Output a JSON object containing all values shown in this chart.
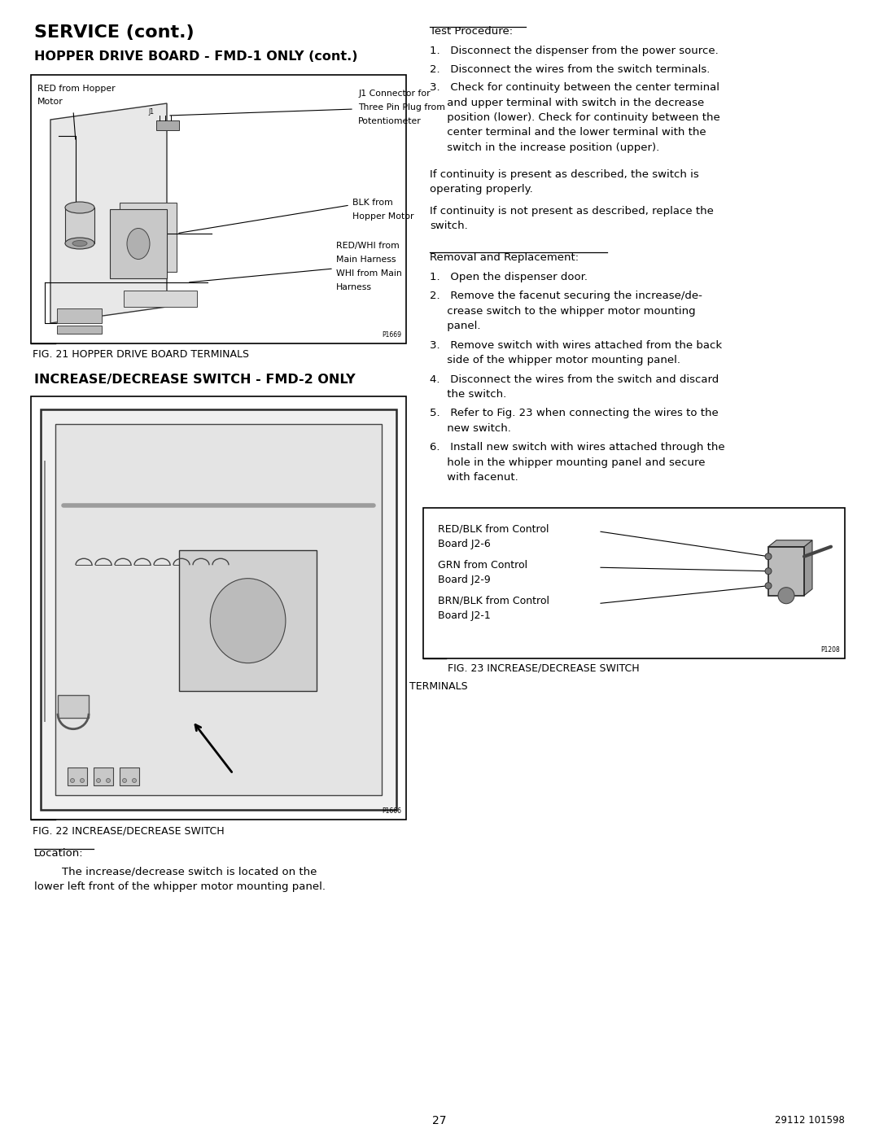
{
  "page_width": 10.8,
  "page_height": 13.97,
  "bg_color": "#ffffff",
  "lm": 0.42,
  "rm": 10.38,
  "c1r": 4.95,
  "c2l": 5.28,
  "title1": "SERVICE (cont.)",
  "title2": "HOPPER DRIVE BOARD - FMD-1 ONLY (cont.)",
  "title3": "INCREASE/DECREASE SWITCH - FMD-2 ONLY",
  "tp_heading": "Test Procedure:",
  "test_items": [
    [
      "1.   Disconnect the dispenser from the power source."
    ],
    [
      "2.   Disconnect the wires from the switch terminals."
    ],
    [
      "3.   Check for continuity between the center terminal",
      "     and upper terminal with switch in the decrease",
      "     position (lower). Check for continuity between the",
      "     center terminal and the lower terminal with the",
      "     switch in the increase position (upper)."
    ]
  ],
  "para1": [
    "If continuity is present as described, the switch is",
    "operating properly."
  ],
  "para2": [
    "If continuity is not present as described, replace the",
    "switch."
  ],
  "rem_heading": "Removal and Replacement:",
  "rem_items": [
    [
      "1.   Open the dispenser door."
    ],
    [
      "2.   Remove the facenut securing the increase/de-",
      "     crease switch to the whipper motor mounting",
      "     panel."
    ],
    [
      "3.   Remove switch with wires attached from the back",
      "     side of the whipper motor mounting panel."
    ],
    [
      "4.   Disconnect the wires from the switch and discard",
      "     the switch."
    ],
    [
      "5.   Refer to Fig. 23 when connecting the wires to the",
      "     new switch."
    ],
    [
      "6.   Install new switch with wires attached through the",
      "     hole in the whipper mounting panel and secure",
      "     with facenut."
    ]
  ],
  "box3_labels": [
    [
      "RED/BLK from Control",
      "Board J2-6"
    ],
    [
      "GRN from Control",
      "Board J2-9"
    ],
    [
      "BRN/BLK from Control",
      "Board J2-1"
    ]
  ],
  "box1_label_tl": [
    "RED from Hopper",
    "Motor"
  ],
  "box1_label_tr": [
    "J1 Connector for",
    "Three Pin Plug from",
    "Potentiometer"
  ],
  "box1_label_mr": [
    "BLK from",
    "Hopper Motor"
  ],
  "box1_label_br": [
    "RED/WHI from",
    "Main Harness",
    "WHI from Main",
    "Harness"
  ],
  "fig21_caption": "FIG. 21 HOPPER DRIVE BOARD TERMINALS",
  "fig21_code": "P1669",
  "fig22_caption": "FIG. 22 INCREASE/DECREASE SWITCH",
  "fig22_code": "P1666",
  "fig23_line1": "FIG. 23 INCREASE/DECREASE SWITCH",
  "fig23_line2": "TERMINALS",
  "fig23_code": "P1208",
  "loc_heading": "Location:",
  "loc_text": [
    "        The increase/decrease switch is located on the",
    "lower left front of the whipper motor mounting panel."
  ],
  "page_num": "27",
  "doc_num": "29112 101598",
  "lh": 0.185,
  "fs_body": 9.5,
  "fs_title1": 16,
  "fs_title2": 11.5,
  "fs_caption": 9.0,
  "fs_small": 6.5
}
